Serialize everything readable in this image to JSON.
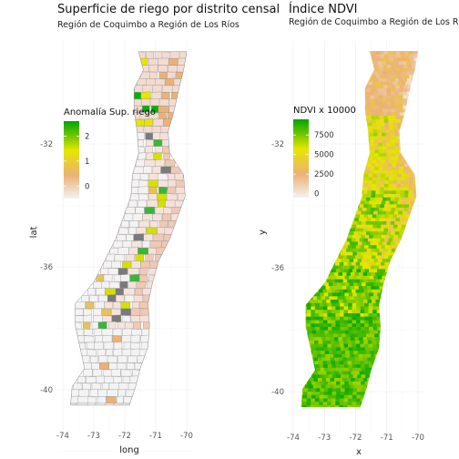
{
  "left_map": {
    "title": "Superficie de riego por distrito censal",
    "subtitle": "Región de Coquimbo a Región de Los Ríos",
    "legend_title": "Anomalía Sup. riego",
    "legend_labels": [
      "2",
      "1",
      "0"
    ],
    "legend_colors": [
      "#00a600",
      "#e6e600",
      "#ecb176",
      "#f2f2f2"
    ],
    "x_ticks": [
      "-74",
      "-73",
      "-72",
      "-71",
      "-70"
    ],
    "y_ticks": [
      "-32",
      "-36",
      "-40"
    ],
    "x_title": "long",
    "y_title": "lat"
  },
  "right_map": {
    "title": "Índice NDVI",
    "subtitle": "Región de Coquimbo a Región de Los Ríos",
    "legend_title": "NDVI x 10000",
    "legend_labels": [
      "7500",
      "5000",
      "2500",
      "0"
    ],
    "legend_colors": [
      "#00a600",
      "#e6e600",
      "#ecb176",
      "#f2f2f2"
    ],
    "x_ticks": [
      "-74",
      "-73",
      "-72",
      "-71",
      "-70"
    ],
    "y_ticks": [
      "-32",
      "-36",
      "-40"
    ],
    "x_title": "x",
    "y_title": "y"
  },
  "chart_data": [
    {
      "type": "choropleth",
      "title": "Superficie de riego por distrito censal",
      "subtitle": "Región de Coquimbo a Región de Los Ríos",
      "xlabel": "long",
      "ylabel": "lat",
      "xlim": [
        -74.2,
        -69.8
      ],
      "ylim": [
        -41.2,
        -28.9
      ],
      "x_ticks": [
        -74,
        -73,
        -72,
        -71,
        -70
      ],
      "y_ticks": [
        -32,
        -36,
        -40
      ],
      "legend": {
        "title": "Anomalía Sup. riego",
        "breaks": [
          2,
          1,
          0
        ],
        "range": [
          -0.5,
          2.6
        ]
      },
      "grid": true
    },
    {
      "type": "raster",
      "title": "Índice NDVI",
      "subtitle": "Región de Coquimbo a Región de Los Ríos",
      "xlabel": "x",
      "ylabel": "y",
      "xlim": [
        -74.2,
        -69.8
      ],
      "ylim": [
        -41.2,
        -28.9
      ],
      "x_ticks": [
        -74,
        -73,
        -72,
        -71,
        -70
      ],
      "y_ticks": [
        -32,
        -36,
        -40
      ],
      "legend": {
        "title": "NDVI x 10000",
        "breaks": [
          7500,
          5000,
          2500,
          0
        ],
        "range": [
          -500,
          9500
        ]
      },
      "grid": true
    }
  ]
}
